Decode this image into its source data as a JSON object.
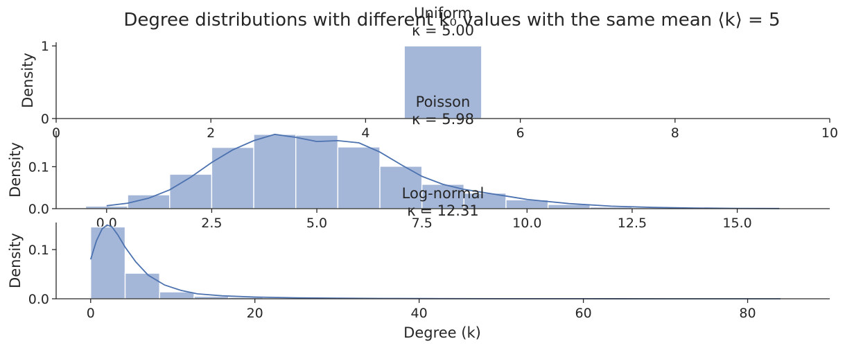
{
  "suptitle": "Degree distributions with different k₀ values with the same mean ⟨k⟩ = 5",
  "chart_data": [
    {
      "type": "bar",
      "title_line1": "Uniform",
      "title_line2": "κ = 5.00",
      "ylabel": "Density",
      "xlabel": "",
      "xlim": [
        0,
        10
      ],
      "ylim": [
        0,
        1.05
      ],
      "xticks": [
        0,
        2,
        4,
        6,
        8,
        10
      ],
      "xtick_labels": [
        "0",
        "2",
        "4",
        "6",
        "8",
        "10"
      ],
      "yticks": [
        0,
        1
      ],
      "ytick_labels": [
        "0",
        "1"
      ],
      "bins": [
        {
          "x0": 4.5,
          "x1": 5.5,
          "density": 1.0
        }
      ],
      "kde": []
    },
    {
      "type": "bar",
      "title_line1": "Poisson",
      "title_line2": "κ = 5.98",
      "ylabel": "Density",
      "xlabel": "",
      "xlim": [
        -1.2,
        17.2
      ],
      "ylim": [
        0,
        0.185
      ],
      "xticks": [
        0,
        2.5,
        5,
        7.5,
        10,
        12.5,
        15
      ],
      "xtick_labels": [
        "0.0",
        "2.5",
        "5.0",
        "7.5",
        "10.0",
        "12.5",
        "15.0"
      ],
      "yticks": [
        0,
        0.1
      ],
      "ytick_labels": [
        "0.0",
        "0.1"
      ],
      "bins": [
        {
          "x0": -0.5,
          "x1": 0.5,
          "density": 0.006
        },
        {
          "x0": 0.5,
          "x1": 1.5,
          "density": 0.033
        },
        {
          "x0": 1.5,
          "x1": 2.5,
          "density": 0.082
        },
        {
          "x0": 2.5,
          "x1": 3.5,
          "density": 0.146
        },
        {
          "x0": 3.5,
          "x1": 4.5,
          "density": 0.177
        },
        {
          "x0": 4.5,
          "x1": 5.5,
          "density": 0.175
        },
        {
          "x0": 5.5,
          "x1": 6.5,
          "density": 0.147
        },
        {
          "x0": 6.5,
          "x1": 7.5,
          "density": 0.101
        },
        {
          "x0": 7.5,
          "x1": 8.5,
          "density": 0.058
        },
        {
          "x0": 8.5,
          "x1": 9.5,
          "density": 0.037
        },
        {
          "x0": 9.5,
          "x1": 10.5,
          "density": 0.021
        },
        {
          "x0": 10.5,
          "x1": 11.5,
          "density": 0.01
        },
        {
          "x0": 11.5,
          "x1": 12.5,
          "density": 0.004
        },
        {
          "x0": 12.5,
          "x1": 13.5,
          "density": 0.002
        },
        {
          "x0": 13.5,
          "x1": 14.5,
          "density": 0.001
        },
        {
          "x0": 14.5,
          "x1": 15.5,
          "density": 0.0005
        },
        {
          "x0": 15.5,
          "x1": 16.5,
          "density": 0.0003
        }
      ],
      "kde": [
        [
          0,
          0.007
        ],
        [
          0.5,
          0.013
        ],
        [
          1,
          0.025
        ],
        [
          1.5,
          0.045
        ],
        [
          2,
          0.075
        ],
        [
          2.5,
          0.11
        ],
        [
          3,
          0.14
        ],
        [
          3.5,
          0.162
        ],
        [
          4,
          0.177
        ],
        [
          4.5,
          0.17
        ],
        [
          5,
          0.16
        ],
        [
          5.5,
          0.162
        ],
        [
          6,
          0.157
        ],
        [
          6.5,
          0.135
        ],
        [
          7,
          0.105
        ],
        [
          7.5,
          0.077
        ],
        [
          8,
          0.058
        ],
        [
          8.5,
          0.046
        ],
        [
          9,
          0.038
        ],
        [
          9.5,
          0.03
        ],
        [
          10,
          0.022
        ],
        [
          11,
          0.012
        ],
        [
          12,
          0.006
        ],
        [
          13,
          0.003
        ],
        [
          14,
          0.0015
        ],
        [
          15,
          0.0007
        ],
        [
          16,
          0.0003
        ]
      ]
    },
    {
      "type": "bar",
      "title_line1": "Log-normal",
      "title_line2": "κ = 12.31",
      "ylabel": "Density",
      "xlabel": "Degree (k)",
      "xlim": [
        -4.2,
        90
      ],
      "ylim": [
        0,
        0.155
      ],
      "xticks": [
        0,
        20,
        40,
        60,
        80
      ],
      "xtick_labels": [
        "0",
        "20",
        "40",
        "60",
        "80"
      ],
      "yticks": [
        0,
        0.1
      ],
      "ytick_labels": [
        "0.0",
        "0.1"
      ],
      "bins": [
        {
          "x0": 0,
          "x1": 4.2,
          "density": 0.146
        },
        {
          "x0": 4.2,
          "x1": 8.4,
          "density": 0.052
        },
        {
          "x0": 8.4,
          "x1": 12.6,
          "density": 0.014
        },
        {
          "x0": 12.6,
          "x1": 16.8,
          "density": 0.005
        },
        {
          "x0": 16.8,
          "x1": 21.0,
          "density": 0.003
        },
        {
          "x0": 21.0,
          "x1": 25.2,
          "density": 0.002
        },
        {
          "x0": 25.2,
          "x1": 29.4,
          "density": 0.001
        },
        {
          "x0": 29.4,
          "x1": 33.6,
          "density": 0.0006
        },
        {
          "x0": 33.6,
          "x1": 37.8,
          "density": 0.0004
        },
        {
          "x0": 37.8,
          "x1": 42.0,
          "density": 0.0003
        }
      ],
      "kde": [
        [
          0,
          0.08
        ],
        [
          0.7,
          0.118
        ],
        [
          1.4,
          0.142
        ],
        [
          2.0,
          0.15
        ],
        [
          2.6,
          0.146
        ],
        [
          3.3,
          0.13
        ],
        [
          4.2,
          0.105
        ],
        [
          5.5,
          0.075
        ],
        [
          7,
          0.048
        ],
        [
          9,
          0.028
        ],
        [
          11,
          0.017
        ],
        [
          13,
          0.01
        ],
        [
          16,
          0.006
        ],
        [
          20,
          0.0035
        ],
        [
          25,
          0.002
        ],
        [
          30,
          0.0012
        ],
        [
          35,
          0.0007
        ],
        [
          40,
          0.0004
        ],
        [
          50,
          0.0002
        ],
        [
          60,
          0.0001
        ],
        [
          70,
          5e-05
        ],
        [
          84,
          2e-05
        ]
      ]
    }
  ]
}
